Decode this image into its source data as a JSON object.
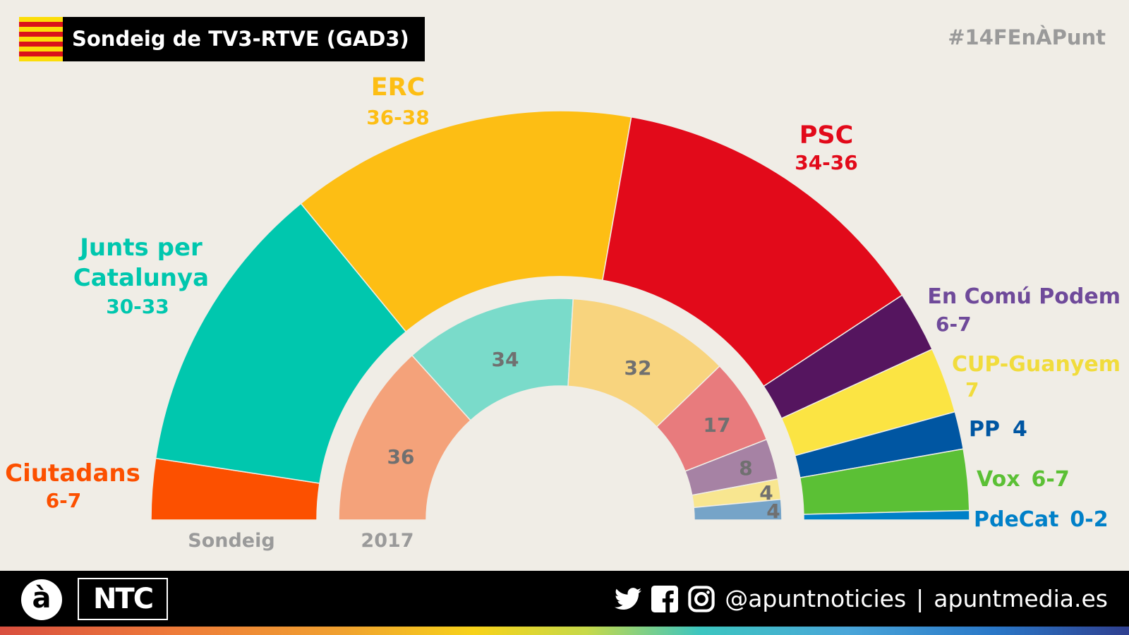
{
  "header": {
    "title": "Sondeig de TV3-RTVE (GAD3)",
    "hashtag": "#14FEnÀPunt"
  },
  "footer": {
    "logo_a": "à",
    "logo_ntc": "NTC",
    "handle": "@apuntnoticies",
    "separator": "|",
    "website": "apuntmedia.es",
    "icons": [
      "twitter-icon",
      "facebook-icon",
      "instagram-icon"
    ]
  },
  "chart_data": {
    "type": "semicircle-donut",
    "rings": [
      {
        "label": "Sondeig",
        "parties": [
          {
            "name": "Ciutadans",
            "range": "6-7",
            "value": 6.5,
            "color": "#fc5000"
          },
          {
            "name": "Junts per Catalunya",
            "name_lines": [
              "Junts per",
              "Catalunya"
            ],
            "range": "30-33",
            "value": 31.5,
            "color": "#00c7ae"
          },
          {
            "name": "ERC",
            "range": "36-38",
            "value": 37,
            "color": "#fdbe14"
          },
          {
            "name": "PSC",
            "range": "34-36",
            "value": 35,
            "color": "#e20a1a"
          },
          {
            "name": "En Comú Podem",
            "range": "6-7",
            "value": 6.5,
            "color": "#55155f",
            "label_color": "#6f4a9a"
          },
          {
            "name": "CUP-Guanyem",
            "range": "7",
            "value": 7,
            "color": "#fbe443",
            "label_color": "#f1dc3c"
          },
          {
            "name": "PP",
            "range": "4",
            "value": 4,
            "color": "#0056a2"
          },
          {
            "name": "Vox",
            "range": "6-7",
            "value": 6.5,
            "color": "#5bc035"
          },
          {
            "name": "PdeCat",
            "range": "0-2",
            "value": 1,
            "color": "#0080c8"
          }
        ]
      },
      {
        "label": "2017",
        "parties": [
          {
            "value": 36,
            "color": "#f4a27a"
          },
          {
            "value": 34,
            "color": "#7adbca"
          },
          {
            "value": 32,
            "color": "#f8d47e"
          },
          {
            "value": 17,
            "color": "#e87b7d"
          },
          {
            "value": 8,
            "color": "#a682a4"
          },
          {
            "value": 4,
            "color": "#f8e690"
          },
          {
            "value": 4,
            "color": "#76a4c8"
          }
        ],
        "labels": [
          "36",
          "34",
          "32",
          "17",
          "8",
          "4",
          "4"
        ],
        "label_color": "#707070"
      }
    ],
    "total_seats": 135
  }
}
